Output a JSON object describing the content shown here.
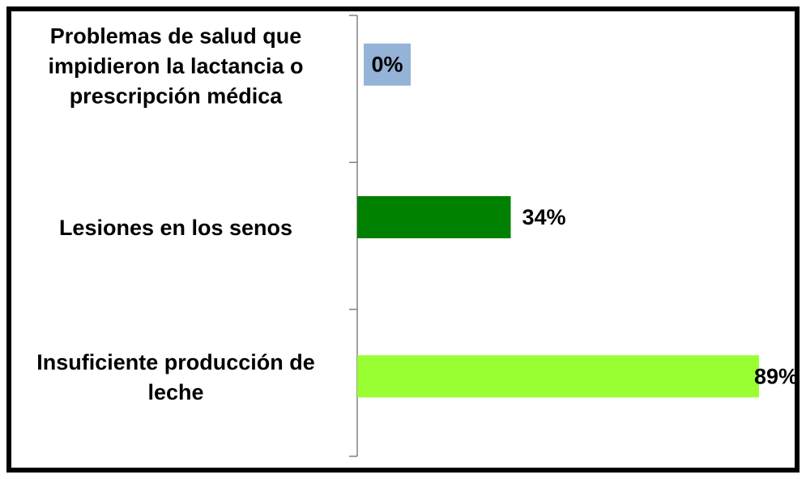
{
  "chart_data": {
    "type": "bar",
    "orientation": "horizontal",
    "categories": [
      "Problemas de salud que impidieron la lactancia o prescripción médica",
      "Lesiones en los senos",
      "Insuficiente producción de leche"
    ],
    "category_lines": [
      [
        "Problemas de salud que",
        "impidieron la lactancia o",
        "prescripción médica"
      ],
      [
        "Lesiones en los senos"
      ],
      [
        "Insuficiente producción de",
        "leche"
      ]
    ],
    "values": [
      0,
      34,
      89
    ],
    "value_labels": [
      "0%",
      "34%",
      "89%"
    ],
    "colors": [
      "#95b3d7",
      "#008000",
      "#99ff33"
    ],
    "xlim": [
      0,
      89
    ],
    "grid": false,
    "legend": "none"
  }
}
